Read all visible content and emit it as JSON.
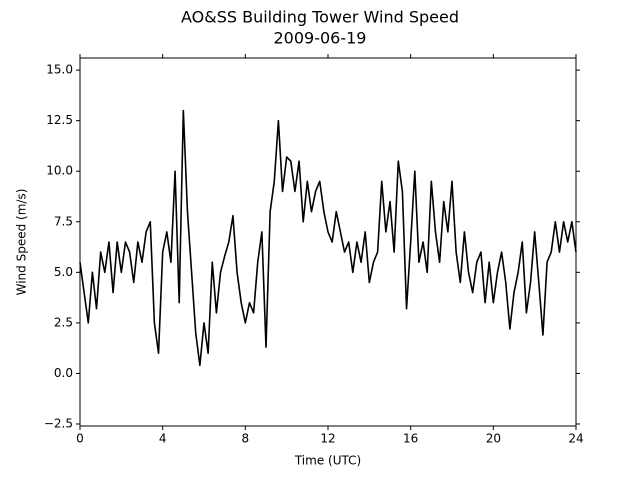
{
  "chart_data": {
    "type": "line",
    "title": "AO&SS Building Tower Wind Speed",
    "subtitle": "2009-06-19",
    "x_label": "Time (UTC)",
    "y_label": "Wind Speed (m/s)",
    "xlim": [
      0,
      24
    ],
    "xticks": [
      0,
      4,
      8,
      12,
      16,
      20,
      24
    ],
    "ylim": [
      -2.6,
      15.6
    ],
    "yticks": [
      {
        "value": -2.5,
        "label": "−2.5"
      },
      {
        "value": 0,
        "label": "0.0"
      },
      2.5,
      {
        "value": 5,
        "label": "5.0"
      },
      7.5,
      {
        "value": 10,
        "label": "10.0"
      },
      12.5,
      {
        "value": 15,
        "label": "15.0"
      }
    ],
    "grid": false,
    "x": [
      0,
      0.2,
      0.4,
      0.6,
      0.8,
      1,
      1.2,
      1.4,
      1.6,
      1.8,
      2,
      2.2,
      2.4,
      2.6,
      2.8,
      3,
      3.2,
      3.4,
      3.6,
      3.8,
      4,
      4.2,
      4.4,
      4.6,
      4.8,
      5,
      5.2,
      5.4,
      5.6,
      5.8,
      6,
      6.2,
      6.4,
      6.6,
      6.8,
      7,
      7.2,
      7.4,
      7.6,
      7.8,
      8,
      8.2,
      8.4,
      8.6,
      8.8,
      9,
      9.2,
      9.4,
      9.6,
      9.8,
      10,
      10.2,
      10.4,
      10.6,
      10.8,
      11,
      11.2,
      11.4,
      11.6,
      11.8,
      12,
      12.2,
      12.4,
      12.6,
      12.8,
      13,
      13.2,
      13.4,
      13.6,
      13.8,
      14,
      14.2,
      14.4,
      14.6,
      14.8,
      15,
      15.2,
      15.4,
      15.6,
      15.8,
      16,
      16.2,
      16.4,
      16.6,
      16.8,
      17,
      17.2,
      17.4,
      17.6,
      17.8,
      18,
      18.2,
      18.4,
      18.6,
      18.8,
      19,
      19.2,
      19.4,
      19.6,
      19.8,
      20,
      20.2,
      20.4,
      20.6,
      20.8,
      21,
      21.2,
      21.4,
      21.6,
      21.8,
      22,
      22.2,
      22.4,
      22.6,
      22.8,
      23,
      23.2,
      23.4,
      23.6,
      23.8,
      24
    ],
    "series": [
      {
        "color": "#000000",
        "values": [
          5.5,
          4.0,
          2.5,
          5.0,
          3.2,
          6.0,
          5.0,
          6.5,
          4.0,
          6.5,
          5.0,
          6.5,
          6.0,
          4.5,
          6.5,
          5.5,
          7.0,
          7.5,
          2.5,
          1.0,
          6.0,
          7.0,
          5.5,
          10.0,
          3.5,
          13.0,
          8.0,
          5.0,
          2.0,
          0.4,
          2.5,
          1.0,
          5.5,
          3.0,
          5.0,
          5.8,
          6.5,
          7.8,
          5.0,
          3.5,
          2.5,
          3.5,
          3.0,
          5.5,
          7.0,
          1.3,
          8.0,
          9.5,
          12.5,
          9.0,
          10.7,
          10.5,
          9.0,
          10.5,
          7.5,
          9.5,
          8.0,
          9.0,
          9.5,
          8.0,
          7.0,
          6.5,
          8.0,
          7.0,
          6.0,
          6.5,
          5.0,
          6.5,
          5.5,
          7.0,
          4.5,
          5.5,
          6.0,
          9.5,
          7.0,
          8.5,
          6.0,
          10.5,
          9.0,
          3.2,
          6.5,
          10.0,
          5.5,
          6.5,
          5.0,
          9.5,
          7.0,
          5.5,
          8.5,
          7.0,
          9.5,
          6.0,
          4.5,
          7.0,
          5.0,
          4.0,
          5.5,
          6.0,
          3.5,
          5.5,
          3.5,
          5.0,
          6.0,
          4.5,
          2.2,
          4.0,
          5.0,
          6.5,
          3.0,
          4.5,
          7.0,
          4.5,
          1.9,
          5.5,
          6.0,
          7.5,
          6.0,
          7.5,
          6.5,
          7.5,
          6.0
        ]
      }
    ]
  }
}
